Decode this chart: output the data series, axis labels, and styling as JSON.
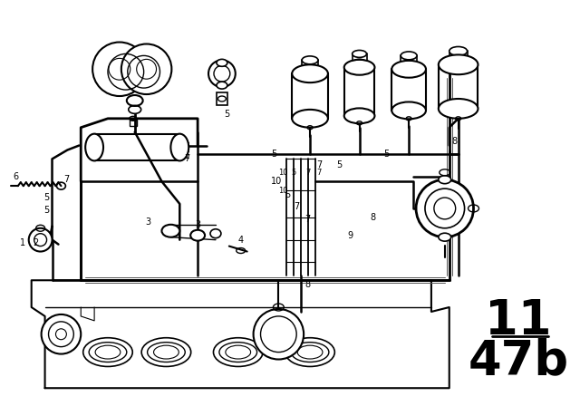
{
  "bg_color": "#ffffff",
  "line_color": "#000000",
  "label_color": "#000000",
  "page_number": "11",
  "page_sub": "47b",
  "figsize": [
    6.4,
    4.48
  ],
  "dpi": 100
}
